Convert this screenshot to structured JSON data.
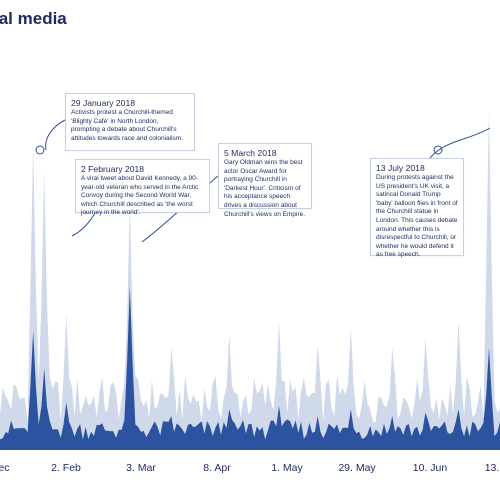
{
  "title": "ial media",
  "chart_data": {
    "type": "area",
    "title": "ial media",
    "xlabel": "",
    "ylabel": "",
    "x_ticks": [
      "ec",
      "2. Feb",
      "3. Mar",
      "8. Apr",
      "1. May",
      "29. May",
      "10. Jun",
      "13."
    ],
    "grid": false,
    "legend": "none",
    "series": [
      {
        "color": "#cfd9ea",
        "peaks": [
          [
            "2018-01-29",
            90
          ],
          [
            "2018-02-02",
            82
          ],
          [
            "2018-03-05",
            72
          ],
          [
            "2018-07-13",
            100
          ],
          [
            "2018-02-10",
            40
          ],
          [
            "2018-03-20",
            30
          ],
          [
            "2018-04-10",
            34
          ],
          [
            "2018-04-28",
            38
          ],
          [
            "2018-05-12",
            31
          ],
          [
            "2018-05-24",
            36
          ],
          [
            "2018-06-08",
            30
          ],
          [
            "2018-06-20",
            33
          ],
          [
            "2018-07-02",
            38
          ]
        ]
      },
      {
        "color": "#2c53a0",
        "peaks": [
          [
            "2018-01-29",
            35
          ],
          [
            "2018-02-02",
            24
          ],
          [
            "2018-03-05",
            48
          ],
          [
            "2018-07-13",
            30
          ],
          [
            "2018-02-10",
            14
          ],
          [
            "2018-03-20",
            10
          ],
          [
            "2018-04-10",
            12
          ],
          [
            "2018-04-28",
            13
          ],
          [
            "2018-05-12",
            10
          ],
          [
            "2018-05-24",
            12
          ],
          [
            "2018-06-08",
            10
          ],
          [
            "2018-06-20",
            11
          ],
          [
            "2018-07-02",
            12
          ]
        ]
      }
    ],
    "annotations": [
      {
        "id": "a1",
        "date": "29 January 2018",
        "text": "Activists protest a Churchill-themed 'Blighty Café' in North London, prompting a debate about Churchill's attitudes towards race and colonialism."
      },
      {
        "id": "a2",
        "date": "2 February 2018",
        "text": "A viral tweet about David Kennedy, a 90-year-old veteran who served in the Arctic Convoy during the Second World War, which Churchill described as 'the worst journey in the world'."
      },
      {
        "id": "a3",
        "date": "5 March 2018",
        "text": "Gary Oldman wins the best actor Oscar Award for portraying Churchill in 'Darkest Hour'. Criticism of his acceptance speech drives a discussion about Churchill's views on Empire."
      },
      {
        "id": "a4",
        "date": "13 July 2018",
        "text": "During protests against the US president's UK visit, a satirical Donald Trump 'baby' balloon flies in front of the Churchill statue in London. This causes debate around whether this is disrespectful to Churchill, or whether he would defend it as free speech."
      }
    ],
    "colors": {
      "light": "#cfd9ea",
      "dark": "#2c53a0",
      "text": "#1d2a5c",
      "line": "#2c4f97"
    }
  }
}
